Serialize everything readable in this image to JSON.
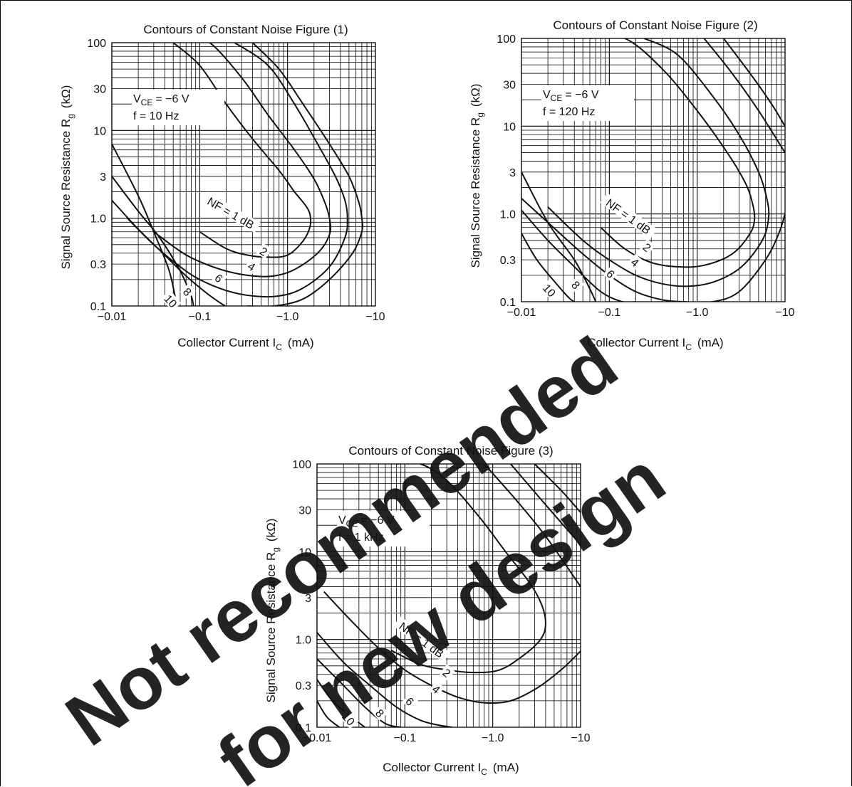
{
  "chart_data": [
    {
      "type": "line",
      "title": "Contours of Constant Noise Figure (1)",
      "xlabel": "Collector Current  I",
      "xlabel_sub": "C",
      "xlabel_unit": "(mA)",
      "ylabel": "Signal Source Resistance  R",
      "ylabel_sub": "g",
      "ylabel_unit": "(kΩ)",
      "x_scale": "log",
      "y_scale": "log",
      "xlim": [
        -0.01,
        -10
      ],
      "ylim": [
        0.1,
        100
      ],
      "x_tick_labels": [
        "−0.01",
        "−0.1",
        "−1.0",
        "−10"
      ],
      "y_tick_labels": [
        "100",
        "30",
        "10",
        "3",
        "1.0",
        "0.3",
        "0.1"
      ],
      "grid": true,
      "conditions": {
        "vce_prefix": "V",
        "vce_sub": "CE",
        "vce_value": "= −6 V",
        "freq": "f = 10 Hz"
      },
      "series": [
        {
          "name": "NF = 1 dB",
          "x": [
            -0.1,
            -0.2,
            -0.35,
            -0.6,
            -1.0,
            -1.5,
            -1.8,
            -1.8,
            -1.6,
            -1.2,
            -0.8,
            -0.4,
            -0.2,
            -0.1,
            -0.05
          ],
          "y": [
            0.7,
            0.45,
            0.38,
            0.36,
            0.38,
            0.55,
            0.8,
            1.1,
            1.4,
            2.0,
            3.5,
            8,
            20,
            55,
            100
          ]
        },
        {
          "name": "2",
          "x": [
            -0.03,
            -0.06,
            -0.1,
            -0.2,
            -0.4,
            -0.7,
            -1.2,
            -2.2,
            -3.0,
            -3.0,
            -2.6,
            -2.0,
            -1.2,
            -0.6,
            -0.3,
            -0.13,
            -0.08
          ],
          "y": [
            0.7,
            0.42,
            0.32,
            0.25,
            0.22,
            0.22,
            0.26,
            0.4,
            0.65,
            1.0,
            1.6,
            2.8,
            6,
            15,
            40,
            100,
            100
          ]
        },
        {
          "name": "4",
          "x": [
            -0.015,
            -0.03,
            -0.06,
            -0.1,
            -0.2,
            -0.4,
            -0.8,
            -1.5,
            -3.0,
            -4.5,
            -4.8,
            -4.5,
            -3.5,
            -2.2,
            -1.2,
            -0.6,
            -0.25
          ],
          "y": [
            1.0,
            0.5,
            0.28,
            0.2,
            0.15,
            0.13,
            0.13,
            0.16,
            0.28,
            0.6,
            1.0,
            1.6,
            3.0,
            7,
            20,
            55,
            100
          ]
        },
        {
          "name": "6",
          "x": [
            -0.01,
            -0.02,
            -0.04,
            -0.07,
            -0.12,
            -0.18,
            -0.2
          ],
          "y": [
            1.6,
            0.75,
            0.38,
            0.22,
            0.14,
            0.105,
            0.1
          ]
        },
        {
          "name": "8",
          "x": [
            -0.01,
            -0.02,
            -0.035,
            -0.06,
            -0.08,
            -0.085
          ],
          "y": [
            3.0,
            1.2,
            0.6,
            0.25,
            0.13,
            0.1
          ]
        },
        {
          "name": "10",
          "x": [
            -0.01,
            -0.02,
            -0.03,
            -0.045,
            -0.055
          ],
          "y": [
            7.0,
            1.8,
            0.7,
            0.25,
            0.1
          ]
        },
        {
          "name": "",
          "x": [
            -0.35,
            -0.7,
            -1.5,
            -3.0,
            -5.5,
            -7.0,
            -7.0,
            -6.5,
            -5.0,
            -3.0,
            -1.5,
            -0.8,
            -0.4
          ],
          "y": [
            0.1,
            0.1,
            0.12,
            0.2,
            0.4,
            0.7,
            1.0,
            1.5,
            3.0,
            7,
            20,
            50,
            100
          ]
        }
      ],
      "contour_labels": [
        "NF = 1 dB",
        "2",
        "4",
        "6",
        "8",
        "10"
      ]
    },
    {
      "type": "line",
      "title": "Contours of Constant Noise Figure (2)",
      "xlabel": "Collector Current  I",
      "xlabel_sub": "C",
      "xlabel_unit": "(mA)",
      "ylabel": "Signal Source Resistance  R",
      "ylabel_sub": "g",
      "ylabel_unit": "(kΩ)",
      "x_scale": "log",
      "y_scale": "log",
      "xlim": [
        -0.01,
        -10
      ],
      "ylim": [
        0.1,
        100
      ],
      "x_tick_labels": [
        "−0.01",
        "−0.1",
        "−1.0",
        "−10"
      ],
      "y_tick_labels": [
        "100",
        "30",
        "10",
        "3",
        "1.0",
        "0.3",
        "0.1"
      ],
      "grid": true,
      "conditions": {
        "vce_prefix": "V",
        "vce_sub": "CE",
        "vce_value": "= −6 V",
        "freq": "f = 120 Hz"
      },
      "series": [
        {
          "name": "NF = 1 dB",
          "x": [
            -0.08,
            -0.15,
            -0.3,
            -0.6,
            -1.2,
            -2.5,
            -4.0,
            -4.5,
            -4.2,
            -3.5,
            -2.2,
            -1.0,
            -0.4,
            -0.15,
            -0.06
          ],
          "y": [
            0.7,
            0.4,
            0.28,
            0.25,
            0.26,
            0.35,
            0.6,
            0.9,
            1.4,
            2.3,
            5,
            15,
            45,
            100,
            100
          ]
        },
        {
          "name": "2",
          "x": [
            -0.02,
            -0.05,
            -0.1,
            -0.2,
            -0.4,
            -0.8,
            -1.6,
            -3.2,
            -5.5,
            -6.5,
            -6.2,
            -5.0,
            -3.0,
            -1.5,
            -0.6,
            -0.25
          ],
          "y": [
            1.2,
            0.5,
            0.3,
            0.2,
            0.16,
            0.15,
            0.17,
            0.25,
            0.5,
            0.9,
            1.5,
            3.0,
            8,
            22,
            65,
            100
          ]
        },
        {
          "name": "4",
          "x": [
            -0.01,
            -0.02,
            -0.05,
            -0.1,
            -0.2,
            -0.4,
            -0.7,
            -1.5,
            -3.0,
            -6.0,
            -8.5,
            -10.0
          ],
          "y": [
            1.5,
            0.8,
            0.35,
            0.2,
            0.13,
            0.105,
            0.1,
            0.1,
            0.13,
            0.3,
            0.6,
            1.0
          ]
        },
        {
          "name": "6",
          "x": [
            -0.01,
            -0.02,
            -0.04,
            -0.08,
            -0.14,
            -0.2
          ],
          "y": [
            1.1,
            0.5,
            0.25,
            0.13,
            0.1,
            0.1
          ]
        },
        {
          "name": "8",
          "x": [
            -0.01,
            -0.02,
            -0.04,
            -0.06,
            -0.07
          ],
          "y": [
            3.0,
            0.8,
            0.3,
            0.14,
            0.1
          ]
        },
        {
          "name": "10",
          "x": [
            -0.01,
            -0.015,
            -0.025,
            -0.035,
            -0.04
          ],
          "y": [
            0.6,
            0.3,
            0.16,
            0.11,
            0.1
          ]
        },
        {
          "name": "",
          "x": [
            -1.2,
            -2.5,
            -5.0,
            -10.0
          ],
          "y": [
            100,
            40,
            15,
            5
          ]
        },
        {
          "name": "",
          "x": [
            -2.0,
            -4.0,
            -7.0,
            -10.0
          ],
          "y": [
            100,
            40,
            18,
            10
          ]
        }
      ],
      "contour_labels": [
        "NF = 1 dB",
        "2",
        "4",
        "6",
        "8",
        "10"
      ]
    },
    {
      "type": "line",
      "title": "Contours of Constant Noise Figure (3)",
      "xlabel": "Collector Current  I",
      "xlabel_sub": "C",
      "xlabel_unit": "(mA)",
      "ylabel": "Signal Source Resistance  R",
      "ylabel_sub": "g",
      "ylabel_unit": "(kΩ)",
      "x_scale": "log",
      "y_scale": "log",
      "xlim": [
        -0.01,
        -10
      ],
      "ylim": [
        0.1,
        100
      ],
      "x_tick_labels": [
        "−0.01",
        "−0.1",
        "−1.0",
        "−10"
      ],
      "y_tick_labels": [
        "100",
        "30",
        "10",
        "3",
        "1.0",
        "0.3",
        "0.1"
      ],
      "grid": true,
      "conditions": {
        "vce_prefix": "V",
        "vce_sub": "CE",
        "vce_value": "= −6 V",
        "freq": "f = 1 kHz"
      },
      "series": [
        {
          "name": "NF = 1 dB",
          "x": [
            -0.07,
            -0.15,
            -0.3,
            -0.6,
            -1.2,
            -2.2,
            -3.5,
            -4.0,
            -3.6,
            -2.6,
            -1.4,
            -0.7,
            -0.3,
            -0.15,
            -0.08
          ],
          "y": [
            0.75,
            0.52,
            0.45,
            0.42,
            0.45,
            0.65,
            1.0,
            1.5,
            2.5,
            4.5,
            10,
            25,
            65,
            100,
            100
          ]
        },
        {
          "name": "2",
          "x": [
            -0.012,
            -0.025,
            -0.05,
            -0.1,
            -0.2,
            -0.4,
            -0.8,
            -1.6,
            -3.2,
            -6.0,
            -9.5,
            -10.0
          ],
          "y": [
            3.5,
            1.6,
            0.8,
            0.45,
            0.3,
            0.22,
            0.19,
            0.2,
            0.28,
            0.45,
            0.7,
            0.75
          ]
        },
        {
          "name": "4",
          "x": [
            -0.01,
            -0.02,
            -0.04,
            -0.08,
            -0.15,
            -0.25,
            -0.35
          ],
          "y": [
            1.2,
            0.55,
            0.3,
            0.17,
            0.12,
            0.105,
            0.1
          ]
        },
        {
          "name": "6",
          "x": [
            -0.01,
            -0.02,
            -0.035,
            -0.06,
            -0.09
          ],
          "y": [
            0.6,
            0.3,
            0.17,
            0.11,
            0.1
          ]
        },
        {
          "name": "8",
          "x": [
            -0.01,
            -0.015,
            -0.025,
            -0.035
          ],
          "y": [
            0.35,
            0.2,
            0.13,
            0.1
          ]
        },
        {
          "name": "10",
          "x": [
            -0.01,
            -0.013,
            -0.018
          ],
          "y": [
            0.2,
            0.13,
            0.1
          ]
        },
        {
          "name": "",
          "x": [
            -0.8,
            -1.8,
            -4.0,
            -10.0
          ],
          "y": [
            100,
            40,
            15,
            4
          ]
        },
        {
          "name": "",
          "x": [
            -1.6,
            -3.5,
            -7.0,
            -10.0
          ],
          "y": [
            100,
            40,
            18,
            12
          ]
        },
        {
          "name": "",
          "x": [
            -3.0,
            -6.0,
            -10.0
          ],
          "y": [
            100,
            50,
            28
          ]
        }
      ],
      "contour_labels": [
        "NF = 1 dB",
        "2",
        "4",
        "6",
        "8",
        "10"
      ]
    }
  ],
  "watermark": {
    "line1": "Not recommended",
    "line2": "for new design",
    "color": "#ff0000"
  }
}
